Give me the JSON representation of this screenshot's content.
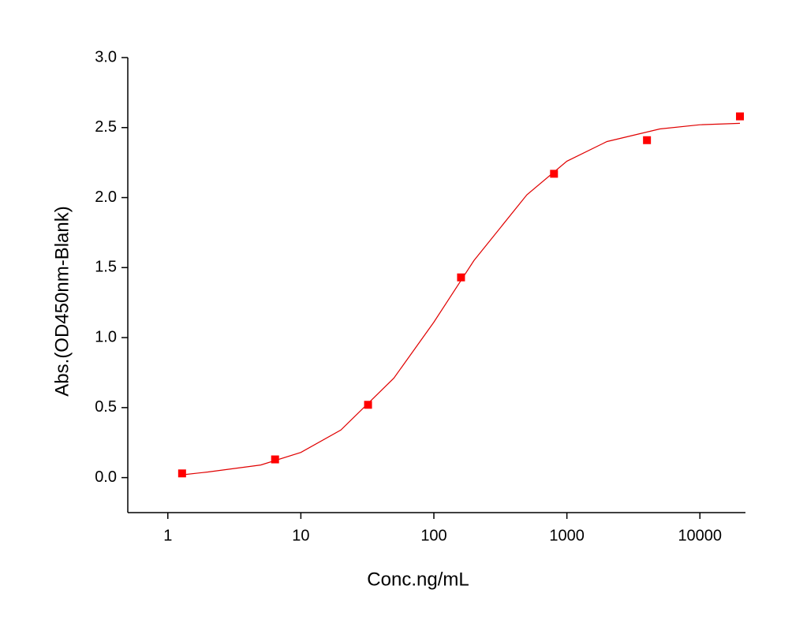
{
  "chart_data": {
    "type": "scatter",
    "x_label": "Conc.ng/mL",
    "y_label": "Abs.(OD450nm-Blank)",
    "xscale": "log",
    "xlim": [
      0.5,
      22000
    ],
    "xticks": [
      1,
      10,
      100,
      1000,
      10000
    ],
    "ylim": [
      -0.25,
      3.0
    ],
    "yticks": [
      {
        "value": 0,
        "label": "0.0"
      },
      0.5,
      {
        "value": 1,
        "label": "1.0"
      },
      1.5,
      {
        "value": 2,
        "label": "2.0"
      },
      2.5,
      {
        "value": 3,
        "label": "3.0"
      }
    ],
    "grid": false,
    "series": [
      {
        "style": "line",
        "color": "#e00000",
        "x": [
          1.28,
          2,
          5,
          10,
          20,
          50,
          100,
          200,
          500,
          1000,
          2000,
          5000,
          10000,
          20000
        ],
        "values": [
          0.02,
          0.04,
          0.09,
          0.18,
          0.34,
          0.71,
          1.11,
          1.55,
          2.02,
          2.26,
          2.4,
          2.49,
          2.52,
          2.53
        ]
      },
      {
        "style": "markers",
        "color": "#ff0000",
        "x": [
          1.28,
          6.4,
          32,
          160,
          800,
          4000,
          20000
        ],
        "values": [
          0.03,
          0.13,
          0.52,
          1.43,
          2.17,
          2.41,
          2.58
        ]
      }
    ]
  }
}
